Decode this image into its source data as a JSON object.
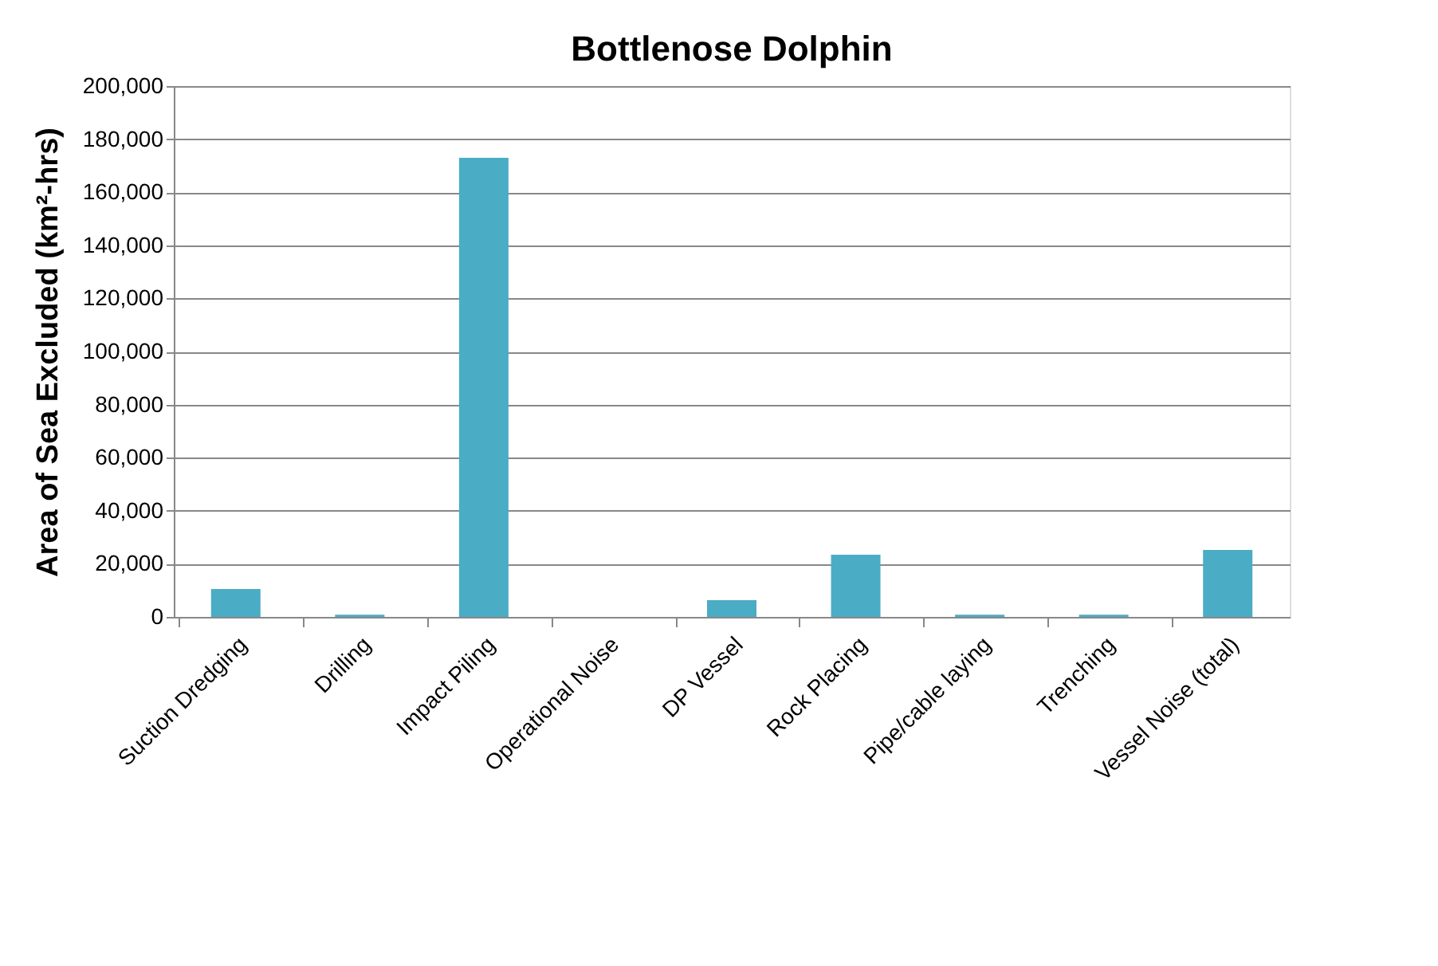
{
  "chart_data": {
    "type": "bar",
    "title": "Bottlenose Dolphin",
    "ylabel": "Area of Sea Excluded (km²-hrs)",
    "categories": [
      "Suction Dredging",
      "Drilling",
      "Impact Piling",
      "Operational Noise",
      "DP Vessel",
      "Rock Placing",
      "Pipe/cable laying",
      "Trenching",
      "Vessel Noise (total)"
    ],
    "values": [
      10500,
      800,
      173000,
      0,
      6300,
      23400,
      800,
      800,
      25200
    ],
    "color": "#4bacc6",
    "ylim": [
      0,
      200000
    ],
    "yticks": [
      {
        "value": 0,
        "label": "0"
      },
      {
        "value": 20000,
        "label": "20,000"
      },
      {
        "value": 40000,
        "label": "40,000"
      },
      {
        "value": 60000,
        "label": "60,000"
      },
      {
        "value": 80000,
        "label": "80,000"
      },
      {
        "value": 100000,
        "label": "100,000"
      },
      {
        "value": 120000,
        "label": "120,000"
      },
      {
        "value": 140000,
        "label": "140,000"
      },
      {
        "value": 160000,
        "label": "160,000"
      },
      {
        "value": 180000,
        "label": "180,000"
      },
      {
        "value": 200000,
        "label": "200,000"
      }
    ],
    "grid": "y",
    "legend": false
  }
}
